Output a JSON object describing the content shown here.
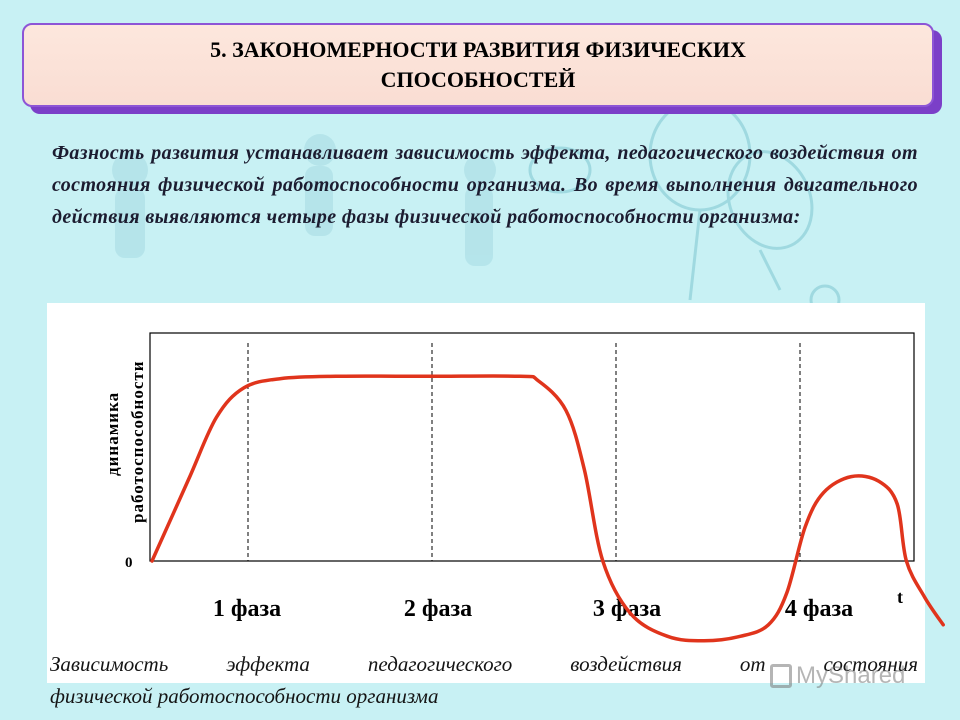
{
  "title": {
    "line1": "5. ЗАКОНОМЕРНОСТИ РАЗВИТИЯ ФИЗИЧЕСКИХ",
    "line2": "СПОСОБНОСТЕЙ"
  },
  "intro": "Фазность развития устанавливает зависимость эффекта, педагогического воздействия от состояния физической работоспособности организма. Во время выполнения двигательного действия выявляются четыре фазы физической работоспособности организма:",
  "chart_data": {
    "type": "line",
    "ylabel_line1": "динамика",
    "ylabel_line2": "работоспособности",
    "xlabel": "t",
    "y_zero_label": "0",
    "phases": [
      "1 фаза",
      "2 фаза",
      "3 фаза",
      "4 фаза"
    ],
    "curve_color": "#e0341c",
    "curve": [
      [
        0.0,
        0.0
      ],
      [
        0.2,
        0.36
      ],
      [
        0.35,
        0.63
      ],
      [
        0.5,
        0.76
      ],
      [
        0.7,
        0.8
      ],
      [
        1.0,
        0.81
      ],
      [
        1.5,
        0.81
      ],
      [
        2.0,
        0.81
      ],
      [
        2.1,
        0.79
      ],
      [
        2.25,
        0.66
      ],
      [
        2.35,
        0.4
      ],
      [
        2.45,
        0.0
      ],
      [
        2.6,
        -0.23
      ],
      [
        2.8,
        -0.33
      ],
      [
        3.0,
        -0.35
      ],
      [
        3.2,
        -0.33
      ],
      [
        3.35,
        -0.28
      ],
      [
        3.45,
        -0.14
      ],
      [
        3.55,
        0.15
      ],
      [
        3.65,
        0.3
      ],
      [
        3.8,
        0.37
      ],
      [
        3.95,
        0.35
      ],
      [
        4.05,
        0.25
      ],
      [
        4.1,
        0.0
      ],
      [
        4.2,
        -0.16
      ],
      [
        4.3,
        -0.28
      ]
    ]
  },
  "caption": {
    "line1": "Зависимость эффекта педагогического воздействия от состояния",
    "line2": "физической работоспособности организма"
  },
  "watermark": "MyShared"
}
